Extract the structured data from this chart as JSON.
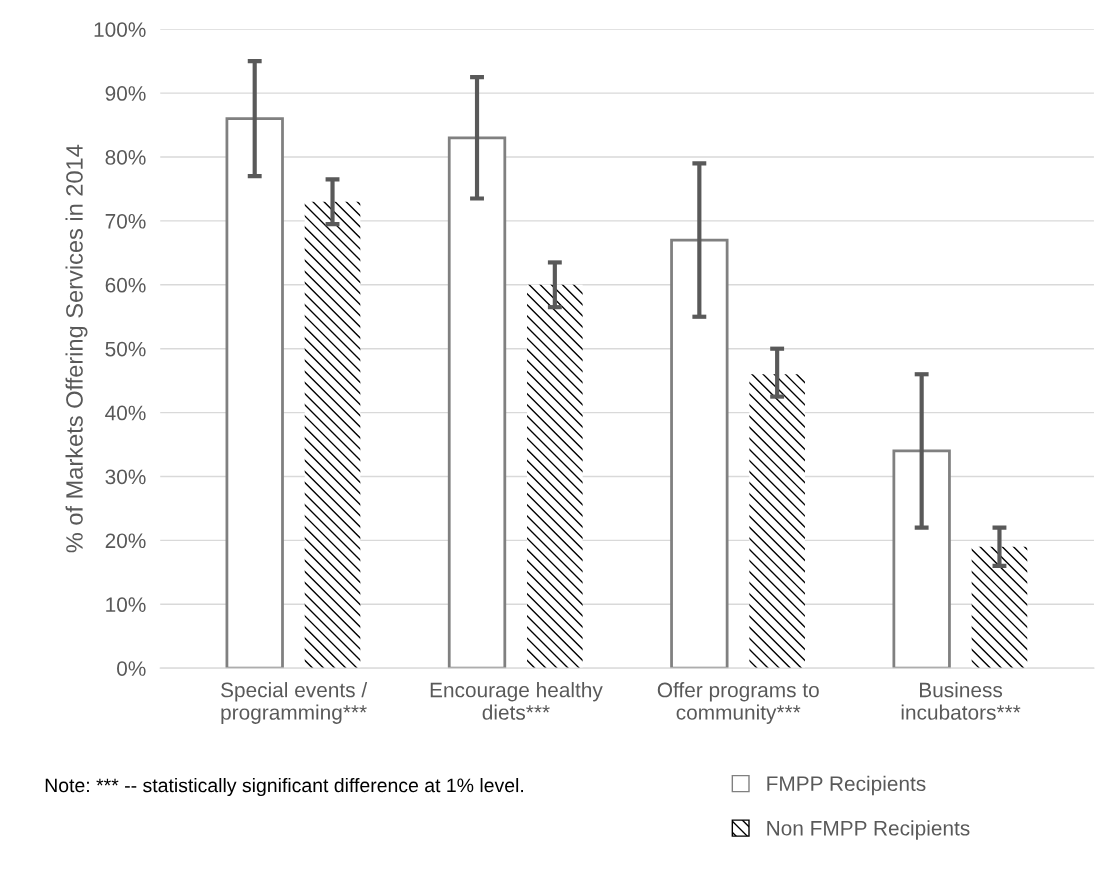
{
  "chart_data": {
    "type": "bar",
    "ylabel": "% of Markets Offering Services in 2014",
    "categories": [
      "Special events /\nprogramming***",
      "Encourage healthy\ndiets***",
      "Offer programs to\ncommunity***",
      "Business\nincubators***"
    ],
    "series": [
      {
        "name": "FMPP Recipients",
        "color": "#ffffff",
        "values": [
          86,
          83,
          67,
          34
        ],
        "errors": [
          [
            77,
            95
          ],
          [
            73.5,
            92.5
          ],
          [
            55,
            79
          ],
          [
            22,
            46
          ]
        ]
      },
      {
        "name": "Non FMPP Recipients",
        "color": "#000000",
        "values": [
          73,
          60,
          46,
          19
        ],
        "errors": [
          [
            69.5,
            76.5
          ],
          [
            56.5,
            63.5
          ],
          [
            42.5,
            50
          ],
          [
            16,
            22
          ]
        ]
      }
    ],
    "ylim": [
      0,
      100
    ],
    "yticks": [
      {
        "value": 0,
        "label": "0%"
      },
      {
        "value": 10,
        "label": "10%"
      },
      {
        "value": 20,
        "label": "20%"
      },
      {
        "value": 30,
        "label": "30%"
      },
      {
        "value": 40,
        "label": "40%"
      },
      {
        "value": 50,
        "label": "50%"
      },
      {
        "value": 60,
        "label": "60%"
      },
      {
        "value": 70,
        "label": "70%"
      },
      {
        "value": 80,
        "label": "80%"
      },
      {
        "value": 90,
        "label": "90%"
      },
      {
        "value": 100,
        "label": "100%"
      }
    ],
    "grid": "y",
    "legend": "bottom right",
    "annotations": [
      "Note: *** -- statistically significant difference at 1% level."
    ]
  }
}
